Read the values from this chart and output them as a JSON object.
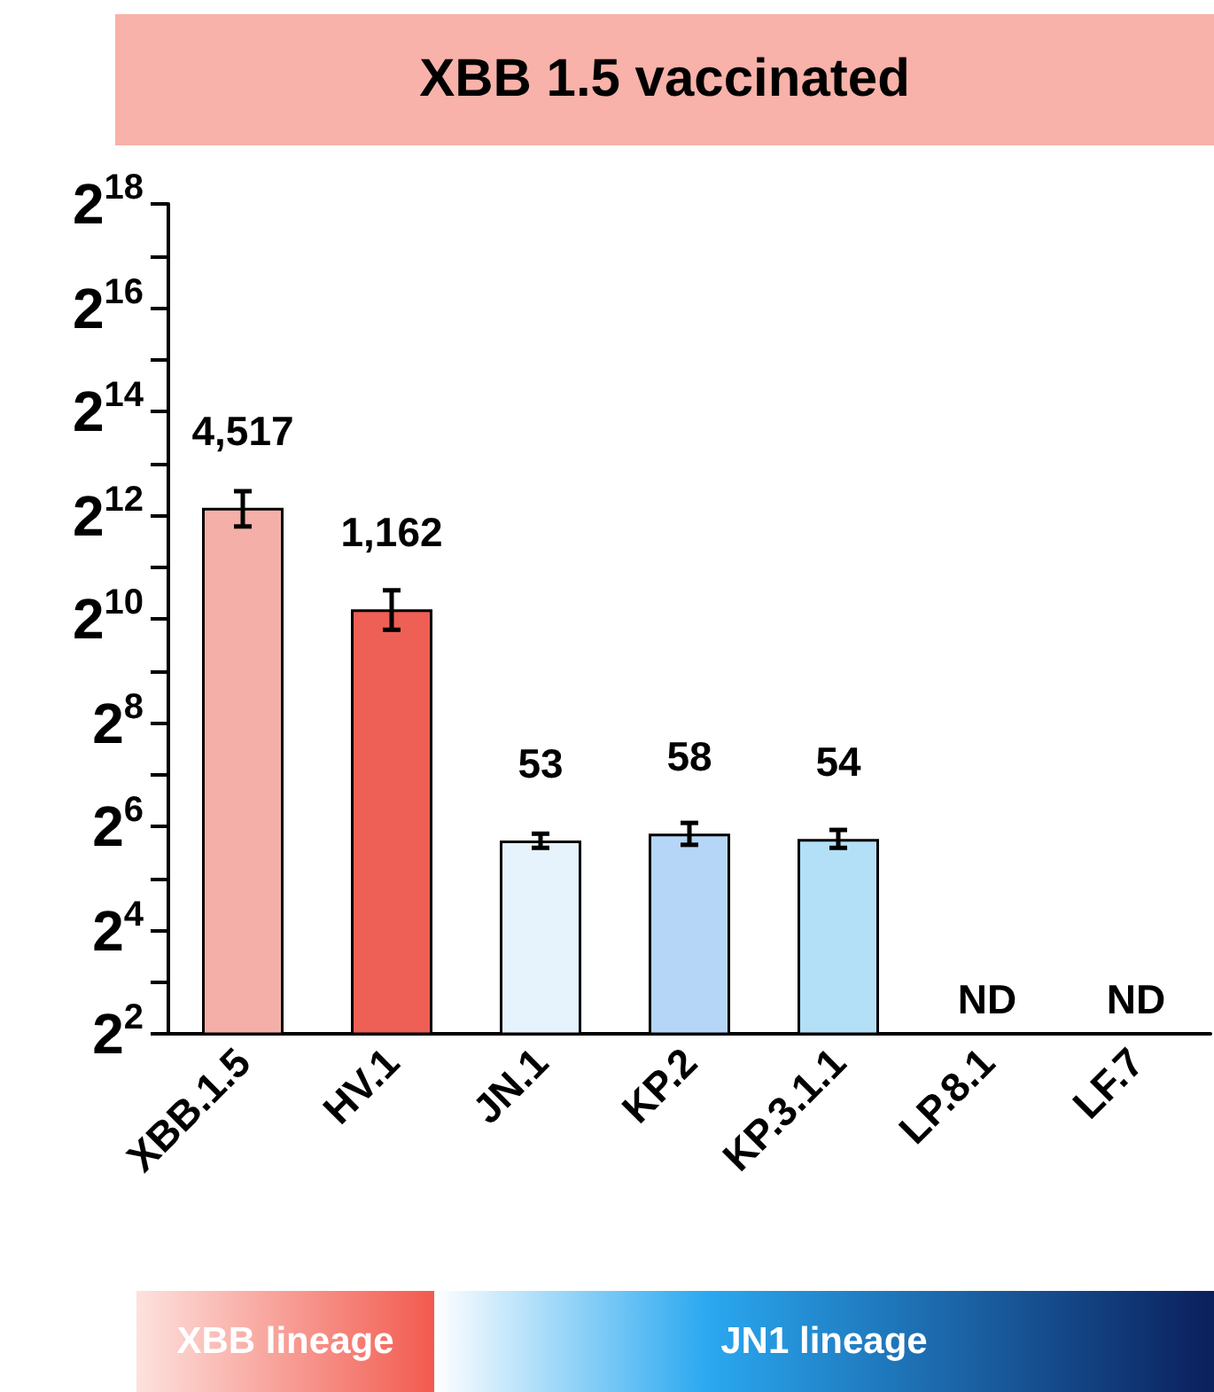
{
  "chart_data": {
    "type": "bar",
    "title": "XBB 1.5 vaccinated",
    "categories": [
      "XBB.1.5",
      "HV.1",
      "JN.1",
      "KP.2",
      "KP.3.1.1",
      "LP.8.1",
      "LF.7"
    ],
    "values": [
      4517,
      1162,
      53,
      58,
      54,
      null,
      null
    ],
    "colors": [
      "#f4b0a8",
      "#ee6055",
      "#e6f3fc",
      "#b5d6f7",
      "#b3e0f7",
      "#b3e0f7",
      "#b3e0f7"
    ],
    "errors": [
      [
        3520,
        5640
      ],
      [
        885,
        1500
      ],
      [
        48,
        58
      ],
      [
        50,
        67
      ],
      [
        48,
        61
      ],
      null,
      null
    ],
    "value_labels": [
      "4,517",
      "1,162",
      "53",
      "58",
      "54",
      "ND",
      "ND"
    ],
    "log": "y",
    "ylim": [
      4,
      262144
    ],
    "yticks": [
      {
        "value": 4,
        "label": "2$^{2}$"
      },
      {
        "value": 8,
        "label": null
      },
      {
        "value": 16,
        "label": "2$^{4}$"
      },
      {
        "value": 32,
        "label": null
      },
      {
        "value": 64,
        "label": "2$^{6}$"
      },
      {
        "value": 128,
        "label": null
      },
      {
        "value": 256,
        "label": "2$^{8}$"
      },
      {
        "value": 512,
        "label": null
      },
      {
        "value": 1024,
        "label": "2$^{10}$"
      },
      {
        "value": 2048,
        "label": null
      },
      {
        "value": 4096,
        "label": "2$^{12}$"
      },
      {
        "value": 8192,
        "label": null
      },
      {
        "value": 16384,
        "label": "2$^{14}$"
      },
      {
        "value": 32768,
        "label": null
      },
      {
        "value": 65536,
        "label": "2$^{16}$"
      },
      {
        "value": 131072,
        "label": null
      },
      {
        "value": 262144,
        "label": "2$^{18}$"
      }
    ],
    "grid": false,
    "annotations": [
      "XBB lineage",
      "JN1 lineage"
    ]
  }
}
